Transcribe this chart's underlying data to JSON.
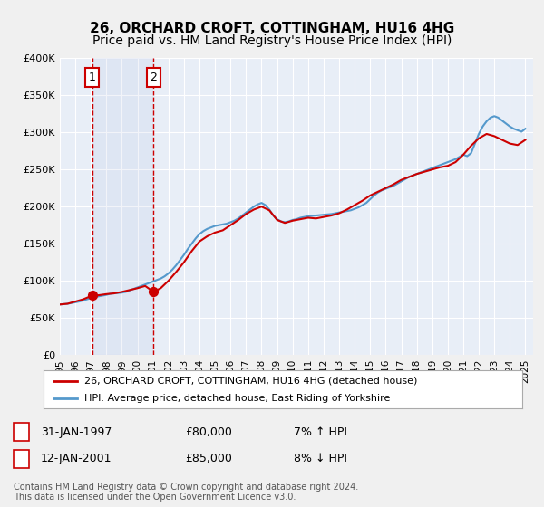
{
  "title": "26, ORCHARD CROFT, COTTINGHAM, HU16 4HG",
  "subtitle": "Price paid vs. HM Land Registry's House Price Index (HPI)",
  "title_fontsize": 11,
  "subtitle_fontsize": 10,
  "ylim": [
    0,
    400000
  ],
  "ytick_labels": [
    "£0",
    "£50K",
    "£100K",
    "£150K",
    "£200K",
    "£250K",
    "£300K",
    "£350K",
    "£400K"
  ],
  "ytick_values": [
    0,
    50000,
    100000,
    150000,
    200000,
    250000,
    300000,
    350000,
    400000
  ],
  "plot_bg_color": "#e8eef7",
  "grid_color": "#ffffff",
  "red_line_color": "#cc0000",
  "blue_line_color": "#5599cc",
  "purchase1_date": 1997.08,
  "purchase1_price": 80000,
  "purchase2_date": 2001.04,
  "purchase2_price": 85000,
  "legend_label_red": "26, ORCHARD CROFT, COTTINGHAM, HU16 4HG (detached house)",
  "legend_label_blue": "HPI: Average price, detached house, East Riding of Yorkshire",
  "table_row1": [
    "1",
    "31-JAN-1997",
    "£80,000",
    "7% ↑ HPI"
  ],
  "table_row2": [
    "2",
    "12-JAN-2001",
    "£85,000",
    "8% ↓ HPI"
  ],
  "footer": "Contains HM Land Registry data © Crown copyright and database right 2024.\nThis data is licensed under the Open Government Licence v3.0.",
  "hpi_years": [
    1995,
    1995.25,
    1995.5,
    1995.75,
    1996,
    1996.25,
    1996.5,
    1996.75,
    1997,
    1997.25,
    1997.5,
    1997.75,
    1998,
    1998.25,
    1998.5,
    1998.75,
    1999,
    1999.25,
    1999.5,
    1999.75,
    2000,
    2000.25,
    2000.5,
    2000.75,
    2001,
    2001.25,
    2001.5,
    2001.75,
    2002,
    2002.25,
    2002.5,
    2002.75,
    2003,
    2003.25,
    2003.5,
    2003.75,
    2004,
    2004.25,
    2004.5,
    2004.75,
    2005,
    2005.25,
    2005.5,
    2005.75,
    2006,
    2006.25,
    2006.5,
    2006.75,
    2007,
    2007.25,
    2007.5,
    2007.75,
    2008,
    2008.25,
    2008.5,
    2008.75,
    2009,
    2009.25,
    2009.5,
    2009.75,
    2010,
    2010.25,
    2010.5,
    2010.75,
    2011,
    2011.25,
    2011.5,
    2011.75,
    2012,
    2012.25,
    2012.5,
    2012.75,
    2013,
    2013.25,
    2013.5,
    2013.75,
    2014,
    2014.25,
    2014.5,
    2014.75,
    2015,
    2015.25,
    2015.5,
    2015.75,
    2016,
    2016.25,
    2016.5,
    2016.75,
    2017,
    2017.25,
    2017.5,
    2017.75,
    2018,
    2018.25,
    2018.5,
    2018.75,
    2019,
    2019.25,
    2019.5,
    2019.75,
    2020,
    2020.25,
    2020.5,
    2020.75,
    2021,
    2021.25,
    2021.5,
    2021.75,
    2022,
    2022.25,
    2022.5,
    2022.75,
    2023,
    2023.25,
    2023.5,
    2023.75,
    2024,
    2024.25,
    2024.5,
    2024.75,
    2025
  ],
  "hpi_values": [
    68000,
    68500,
    69000,
    70000,
    71000,
    72000,
    73500,
    75000,
    76500,
    78000,
    79000,
    80000,
    81000,
    82500,
    83000,
    83500,
    84000,
    85000,
    87000,
    89000,
    91000,
    93000,
    95000,
    97000,
    99000,
    101000,
    103000,
    106000,
    110000,
    115000,
    121000,
    128000,
    135000,
    143000,
    150000,
    157000,
    163000,
    167000,
    170000,
    172000,
    174000,
    175000,
    176000,
    177000,
    179000,
    181000,
    184000,
    188000,
    192000,
    196000,
    200000,
    203000,
    205000,
    202000,
    196000,
    188000,
    183000,
    180000,
    179000,
    180000,
    182000,
    183000,
    185000,
    186000,
    187000,
    187500,
    188000,
    188500,
    189000,
    189500,
    190000,
    191000,
    192000,
    193000,
    194000,
    195000,
    197000,
    199000,
    202000,
    205000,
    210000,
    215000,
    219000,
    222000,
    224000,
    226000,
    228000,
    231000,
    234000,
    237000,
    240000,
    242000,
    244000,
    246000,
    248000,
    250000,
    252000,
    254000,
    256000,
    258000,
    260000,
    262000,
    264000,
    267000,
    270000,
    268000,
    272000,
    285000,
    298000,
    308000,
    315000,
    320000,
    322000,
    320000,
    316000,
    312000,
    308000,
    305000,
    303000,
    301000,
    305000
  ],
  "prop_years": [
    1995,
    1995.5,
    1996,
    1996.5,
    1997.08,
    1997.5,
    1998,
    1998.5,
    1999,
    1999.5,
    2000,
    2000.5,
    2001.04,
    2001.5,
    2002,
    2002.5,
    2003,
    2003.5,
    2004,
    2004.5,
    2005,
    2005.5,
    2006,
    2006.5,
    2007,
    2007.5,
    2008,
    2008.5,
    2009,
    2009.5,
    2010,
    2010.5,
    2011,
    2011.5,
    2012,
    2012.5,
    2013,
    2013.5,
    2014,
    2014.5,
    2015,
    2015.5,
    2016,
    2016.5,
    2017,
    2017.5,
    2018,
    2018.5,
    2019,
    2019.5,
    2020,
    2020.5,
    2021,
    2021.5,
    2022,
    2022.5,
    2023,
    2023.5,
    2024,
    2024.5,
    2025
  ],
  "prop_values": [
    68000,
    69000,
    72000,
    75000,
    80000,
    80500,
    82000,
    83000,
    85000,
    87500,
    90000,
    93000,
    85000,
    90000,
    100000,
    112000,
    125000,
    140000,
    153000,
    160000,
    165000,
    168000,
    175000,
    182000,
    190000,
    196000,
    200000,
    195000,
    182000,
    178000,
    181000,
    183000,
    185000,
    184000,
    186000,
    188000,
    191000,
    196000,
    202000,
    208000,
    215000,
    220000,
    225000,
    230000,
    236000,
    240000,
    244000,
    247000,
    250000,
    253000,
    255000,
    260000,
    270000,
    282000,
    292000,
    298000,
    295000,
    290000,
    285000,
    283000,
    290000
  ]
}
